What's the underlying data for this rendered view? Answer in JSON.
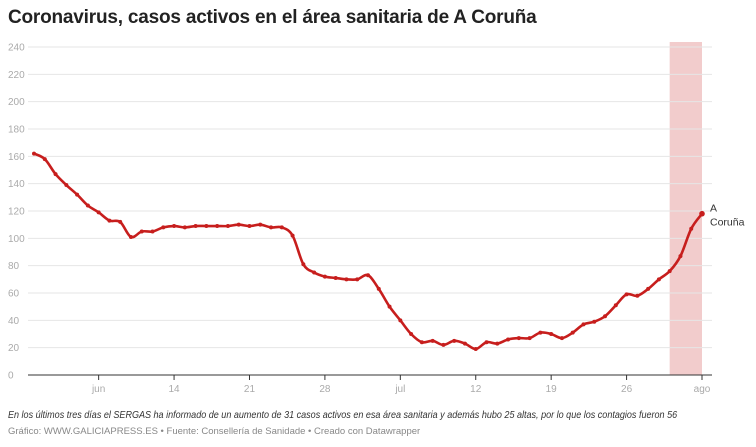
{
  "title": "Coronavirus, casos activos en el área sanitaria de A Coruña",
  "note": "En los últimos tres días el SERGAS ha informado de un aumento de 31 casos activos en esa área sanitaria y además hubo 25 altas, por lo que los contagios fueron 56",
  "footer": "Gráfico: WWW.GALICIAPRESS.ES • Fuente: Consellería de Sanidade • Creado con Datawrapper",
  "colors": {
    "line": "#c71e1d",
    "highlight": "#f2cccc",
    "grid": "#e6e6e6"
  },
  "chart_data": {
    "type": "line",
    "title": "Coronavirus, casos activos en el área sanitaria de A Coruña",
    "x_start": "2020-06-01",
    "x_end": "2020-08-02",
    "ylim": [
      0,
      240
    ],
    "yticks": [
      0,
      20,
      40,
      60,
      80,
      100,
      120,
      140,
      160,
      180,
      200,
      220,
      240
    ],
    "xticks": [
      {
        "date": "2020-06-07",
        "label": "jun"
      },
      {
        "date": "2020-06-14",
        "label": "14"
      },
      {
        "date": "2020-06-21",
        "label": "21"
      },
      {
        "date": "2020-06-28",
        "label": "28"
      },
      {
        "date": "2020-07-05",
        "label": "jul"
      },
      {
        "date": "2020-07-12",
        "label": "12"
      },
      {
        "date": "2020-07-19",
        "label": "19"
      },
      {
        "date": "2020-07-26",
        "label": "26"
      },
      {
        "date": "2020-08-02",
        "label": "ago"
      }
    ],
    "grid": true,
    "highlight_range": [
      "2020-07-30",
      "2020-08-02"
    ],
    "series": [
      {
        "name": "A Coruña",
        "values": [
          162,
          158,
          147,
          139,
          132,
          124,
          119,
          113,
          112,
          101,
          105,
          105,
          108,
          109,
          108,
          109,
          109,
          109,
          109,
          110,
          109,
          110,
          108,
          108,
          102,
          81,
          75,
          72,
          71,
          70,
          70,
          73,
          63,
          50,
          40,
          30,
          24,
          25,
          22,
          25,
          23,
          19,
          24,
          23,
          26,
          27,
          27,
          31,
          30,
          27,
          31,
          37,
          39,
          43,
          51,
          59,
          58,
          63,
          70,
          76,
          87,
          107,
          118
        ]
      }
    ]
  }
}
